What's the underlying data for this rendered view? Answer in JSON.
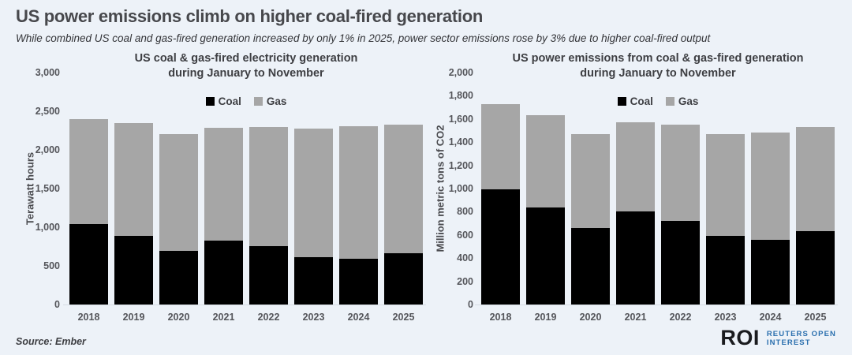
{
  "header": {
    "title": "US power emissions climb on higher coal-fired generation",
    "subtitle": "While combined US coal and gas-fired generation increased by only 1% in 2025, power sector emissions rose by 3% due to higher coal-fired output"
  },
  "footer": {
    "source": "Source: Ember",
    "logo": {
      "abbr": "ROI",
      "line1": "REUTERS OPEN",
      "line2": "INTEREST",
      "blue": "#2a6fae",
      "black": "#1a1b1e"
    }
  },
  "colors": {
    "background": "#edf2f8",
    "coal": "#000000",
    "gas": "#a6a6a6",
    "axis_text": "#54555a"
  },
  "chart_data": [
    {
      "type": "bar",
      "stacked": true,
      "title": "US coal & gas-fired electricity generation during January to November",
      "title_lines": [
        "US coal & gas-fired electricity generation",
        "during January to November"
      ],
      "xlabel": "",
      "ylabel": "Terawatt hours",
      "ylim": [
        0,
        3000
      ],
      "ytick_step": 500,
      "grid": false,
      "legend_position": "top",
      "categories": [
        "2018",
        "2019",
        "2020",
        "2021",
        "2022",
        "2023",
        "2024",
        "2025"
      ],
      "series": [
        {
          "name": "Coal",
          "color": "#000000",
          "values": [
            1040,
            890,
            690,
            830,
            760,
            610,
            590,
            660
          ]
        },
        {
          "name": "Gas",
          "color": "#a6a6a6",
          "values": [
            1360,
            1460,
            1510,
            1460,
            1540,
            1670,
            1720,
            1670
          ]
        }
      ],
      "totals": [
        2400,
        2350,
        2200,
        2290,
        2300,
        2280,
        2310,
        2330
      ]
    },
    {
      "type": "bar",
      "stacked": true,
      "title": "US power emissions from coal & gas-fired generation during January to November",
      "title_lines": [
        "US power emissions from coal & gas-fired generation",
        "during January to November"
      ],
      "xlabel": "",
      "ylabel": "Million metric tons of CO2",
      "ylim": [
        0,
        2000
      ],
      "ytick_step": 200,
      "grid": false,
      "legend_position": "top",
      "categories": [
        "2018",
        "2019",
        "2020",
        "2021",
        "2022",
        "2023",
        "2024",
        "2025"
      ],
      "series": [
        {
          "name": "Coal",
          "color": "#000000",
          "values": [
            990,
            840,
            660,
            800,
            720,
            590,
            560,
            630
          ]
        },
        {
          "name": "Gas",
          "color": "#a6a6a6",
          "values": [
            740,
            790,
            810,
            770,
            830,
            880,
            920,
            900
          ]
        }
      ],
      "totals": [
        1730,
        1630,
        1470,
        1570,
        1550,
        1470,
        1480,
        1530
      ]
    }
  ]
}
